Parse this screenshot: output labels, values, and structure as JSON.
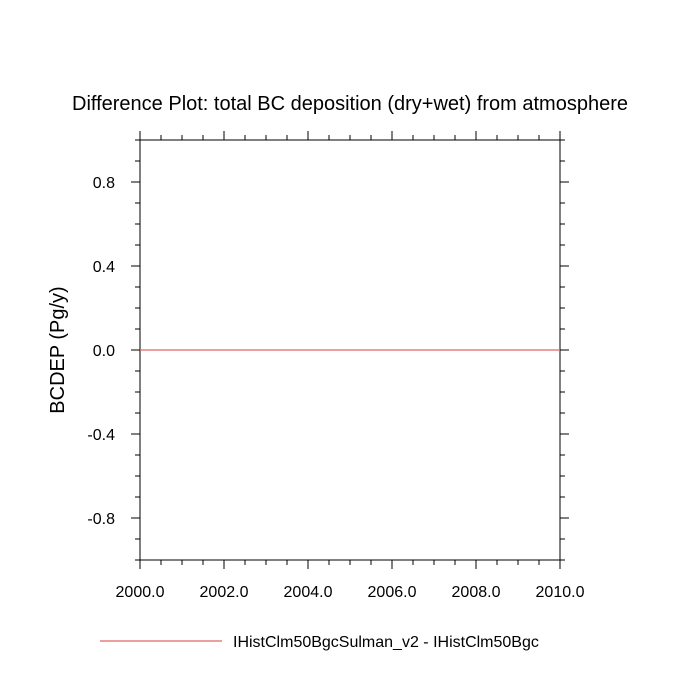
{
  "chart_data": {
    "type": "line",
    "title": "Difference Plot: total BC deposition (dry+wet) from atmosphere",
    "xlabel": "",
    "ylabel": "BCDEP  (Pg/y)",
    "xlim": [
      2000,
      2010
    ],
    "ylim": [
      -1,
      1
    ],
    "x_ticks": [
      2000,
      2002,
      2004,
      2006,
      2008,
      2010
    ],
    "x_tick_labels": [
      "2000.0",
      "2002.0",
      "2004.0",
      "2006.0",
      "2008.0",
      "2010.0"
    ],
    "y_ticks": [
      0.8,
      0.4,
      0.0,
      -0.4,
      -0.8
    ],
    "y_tick_labels": [
      "0.8",
      "0.4",
      "0.0",
      "-0.4",
      "-0.8"
    ],
    "grid": false,
    "legend_position": "bottom",
    "series": [
      {
        "name": "IHistClm50BgcSulman_v2 - IHistClm50Bgc",
        "color": "#e06666",
        "x": [
          2000,
          2010
        ],
        "y": [
          0.0,
          0.0
        ]
      }
    ]
  }
}
